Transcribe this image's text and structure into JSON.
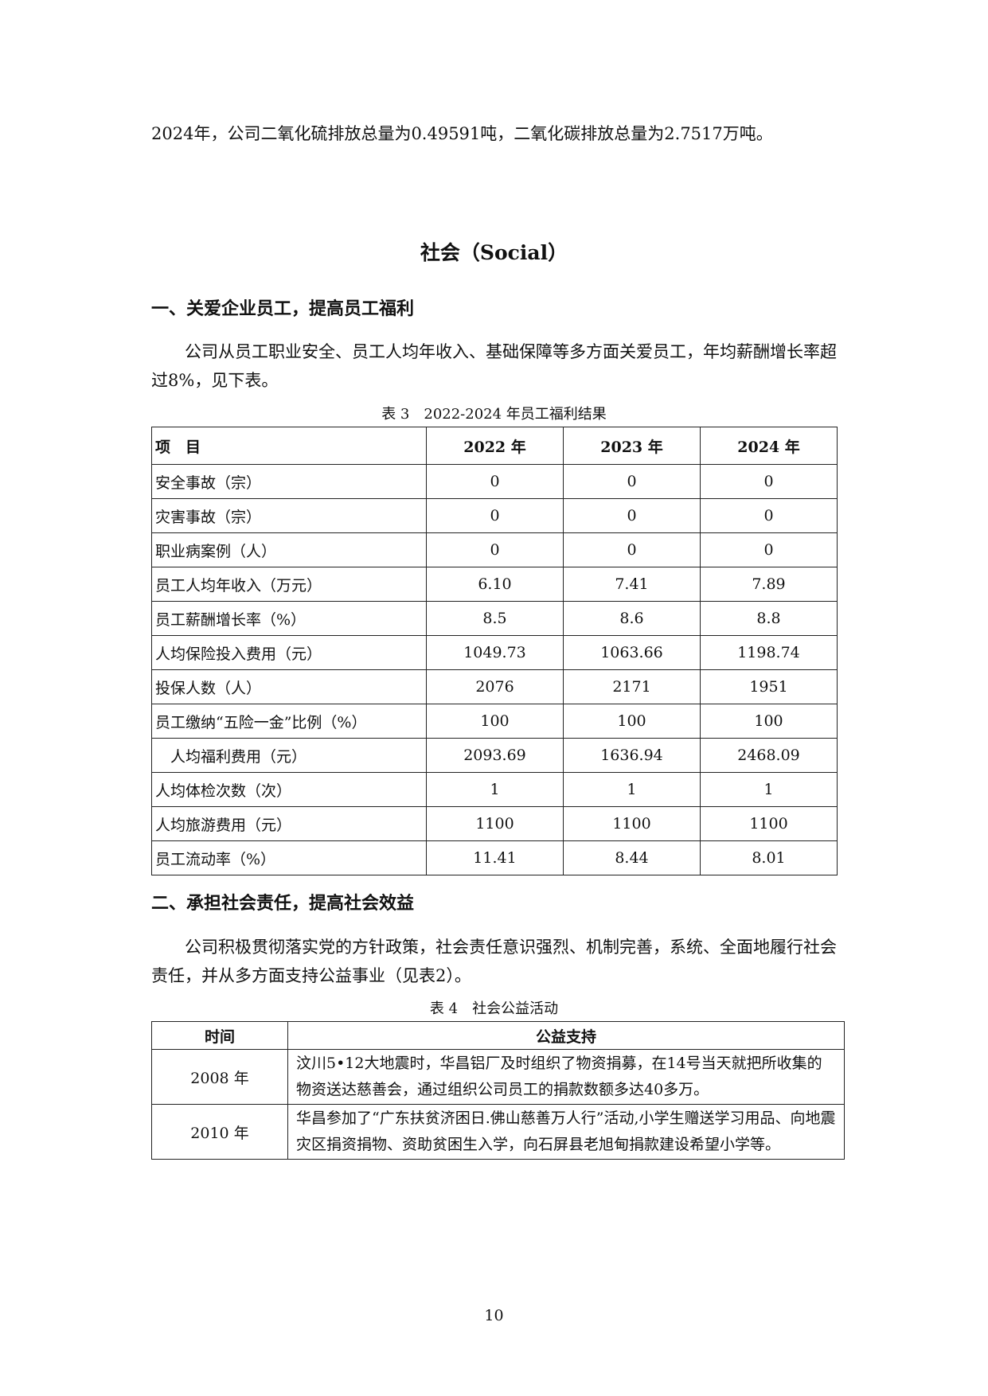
{
  "intro_paragraph": "2024年，公司二氧化硫排放总量为0.49591吨，二氧化碳排放总量为2.7517万吨。",
  "section_title": "社会（Social）",
  "heading1": "一、关爱企业员工，提高员工福利",
  "paragraph1": "公司从员工职业安全、员工人均年收入、基础保障等多方面关爱员工，年均薪酬增长率超过8%，见下表。",
  "table3": {
    "caption": "表 3　2022-2024 年员工福利结果",
    "headers": [
      "项　目",
      "2022 年",
      "2023 年",
      "2024 年"
    ],
    "rows": [
      [
        "安全事故（宗）",
        "0",
        "0",
        "0"
      ],
      [
        "灾害事故（宗）",
        "0",
        "0",
        "0"
      ],
      [
        "职业病案例（人）",
        "0",
        "0",
        "0"
      ],
      [
        "员工人均年收入（万元）",
        "6.10",
        "7.41",
        "7.89"
      ],
      [
        "员工薪酬增长率（%）",
        "8.5",
        "8.6",
        "8.8"
      ],
      [
        "人均保险投入费用（元）",
        "1049.73",
        "1063.66",
        "1198.74"
      ],
      [
        "投保人数（人）",
        "2076",
        "2171",
        "1951"
      ],
      [
        "员工缴纳“五险一金”比例（%）",
        "100",
        "100",
        "100"
      ],
      [
        "　人均福利费用（元）",
        "2093.69",
        "1636.94",
        "2468.09"
      ],
      [
        "人均体检次数（次）",
        "1",
        "1",
        "1"
      ],
      [
        "人均旅游费用（元）",
        "1100",
        "1100",
        "1100"
      ],
      [
        "员工流动率（%）",
        "11.41",
        "8.44",
        "8.01"
      ]
    ]
  },
  "heading2": "二、承担社会责任，提高社会效益",
  "paragraph2": "公司积极贯彻落实党的方针政策，社会责任意识强烈、机制完善，系统、全面地履行社会责任，并从多方面支持公益事业（见表2）。",
  "table4": {
    "caption": "表 4　社会公益活动",
    "headers": [
      "时间",
      "公益支持"
    ],
    "rows": [
      [
        "2008 年",
        "汶川5•12大地震时，华昌铝厂及时组织了物资捐募，在14号当天就把所收集的物资送达慈善会，通过组织公司员工的捐款数额多达40多万。"
      ],
      [
        "2010 年",
        "华昌参加了“广东扶贫济困日.佛山慈善万人行”活动,小学生赠送学习用品、向地震灾区捐资捐物、资助贫困生入学，向石屏县老旭甸捐款建设希望小学等。"
      ]
    ]
  },
  "page_number": "10"
}
